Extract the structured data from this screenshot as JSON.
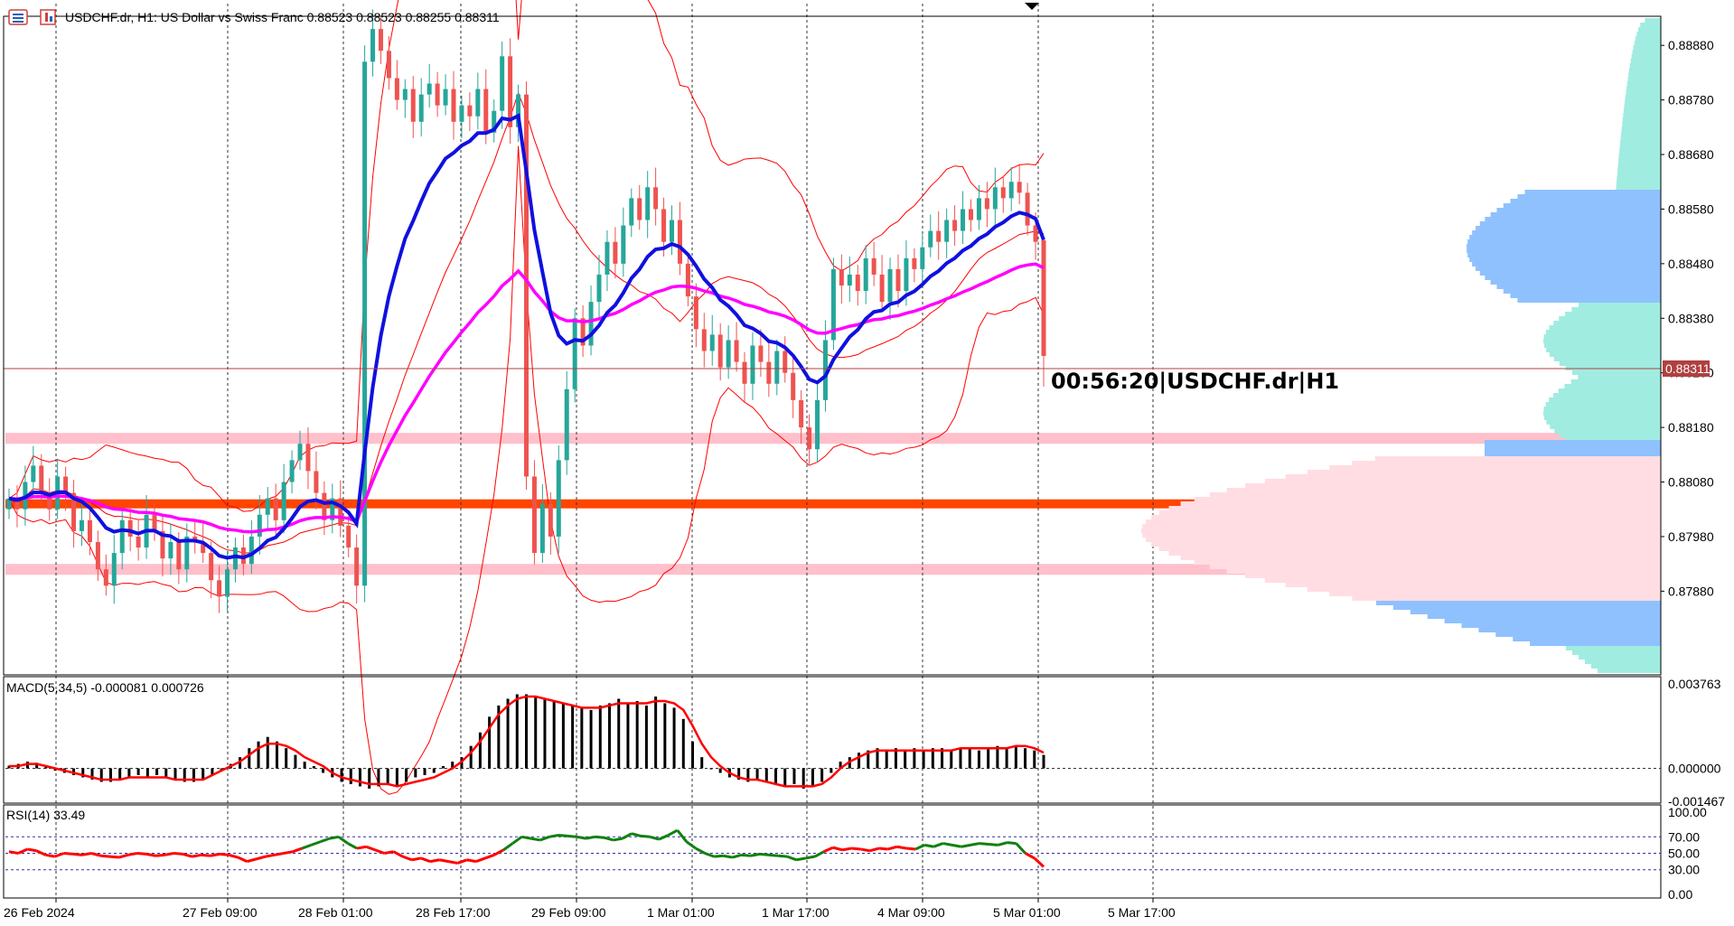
{
  "header": {
    "title": "USDCHF.dr, H1:  US Dollar vs Swiss Franc  0.88523 0.88523 0.88255 0.88311",
    "menu_icon": "chart-menu-icon",
    "window_icon": "chart-window-icon"
  },
  "current_price_label": "0.88311",
  "countdown_label": "00:56:20|USDCHF.dr|H1",
  "colors": {
    "bull": "#26a69a",
    "bear": "#ef5350",
    "ema_fast": "#1010e0",
    "ema_slow": "#ff00ff",
    "bollinger": "#ff0000",
    "key_level": "#ff4500",
    "zone": "#ffc0cb",
    "vp_blue": "#8fc1ff",
    "vp_cyan": "#a0ece0",
    "vp_pink": "#ffdde3",
    "grid": "#000000"
  },
  "chart_data": [
    {
      "type": "candlestick",
      "title": "USDCHF.dr, H1:  US Dollar vs Swiss Franc",
      "x_tick_labels": [
        "26 Feb 2024",
        "27 Feb 09:00",
        "28 Feb 01:00",
        "28 Feb 17:00",
        "29 Feb 09:00",
        "1 Mar 01:00",
        "1 Mar 17:00",
        "4 Mar 09:00",
        "5 Mar 01:00",
        "5 Mar 17:00"
      ],
      "y_tick_labels": [
        "0.88880",
        "0.88780",
        "0.88680",
        "0.88580",
        "0.88480",
        "0.88380",
        "0.88280",
        "0.88180",
        "0.88080",
        "0.87980",
        "0.87880"
      ],
      "ylim": [
        0.8773,
        0.8893
      ],
      "ohlc_last": {
        "open": 0.88523,
        "high": 0.88523,
        "low": 0.88255,
        "close": 0.88311
      },
      "closes": [
        0.8805,
        0.8803,
        0.8808,
        0.8811,
        0.8806,
        0.8803,
        0.8809,
        0.8806,
        0.8799,
        0.8801,
        0.8797,
        0.8792,
        0.8789,
        0.8795,
        0.8801,
        0.8798,
        0.8796,
        0.8802,
        0.8799,
        0.8794,
        0.8797,
        0.8792,
        0.8798,
        0.8797,
        0.8795,
        0.879,
        0.8787,
        0.8792,
        0.8796,
        0.8793,
        0.8798,
        0.8802,
        0.8805,
        0.8801,
        0.8808,
        0.8812,
        0.8815,
        0.881,
        0.8806,
        0.8801,
        0.8805,
        0.88,
        0.8796,
        0.8789,
        0.8885,
        0.8891,
        0.8887,
        0.8882,
        0.8878,
        0.888,
        0.8874,
        0.8879,
        0.8881,
        0.8877,
        0.888,
        0.8874,
        0.8877,
        0.8875,
        0.888,
        0.8872,
        0.8876,
        0.8886,
        0.8873,
        0.8879,
        0.8809,
        0.8795,
        0.8804,
        0.8798,
        0.8812,
        0.8825,
        0.8838,
        0.8833,
        0.8841,
        0.8846,
        0.8852,
        0.8848,
        0.8855,
        0.886,
        0.8856,
        0.8862,
        0.8858,
        0.8852,
        0.8856,
        0.8848,
        0.8842,
        0.8836,
        0.8832,
        0.8835,
        0.8829,
        0.8834,
        0.883,
        0.8826,
        0.8833,
        0.883,
        0.8826,
        0.8832,
        0.8828,
        0.8823,
        0.8818,
        0.8814,
        0.8823,
        0.8834,
        0.8847,
        0.8844,
        0.8846,
        0.8843,
        0.8849,
        0.8846,
        0.8841,
        0.8847,
        0.8843,
        0.8849,
        0.8847,
        0.8851,
        0.8854,
        0.8852,
        0.8856,
        0.8854,
        0.8858,
        0.8856,
        0.886,
        0.8858,
        0.8862,
        0.886,
        0.8863,
        0.8861,
        0.8855,
        0.8852,
        0.8831
      ],
      "key_level": 0.8804,
      "zone_upper": [
        0.8815,
        0.8817
      ],
      "zone_lower": [
        0.8791,
        0.8793
      ],
      "series": [
        {
          "name": "",
          "indicator": "EMA",
          "color": "#1010e0"
        },
        {
          "name": "",
          "indicator": "SMA",
          "color": "#ff00ff"
        },
        {
          "name": "",
          "indicator": "Bollinger Bands",
          "color": "#ff0000"
        }
      ]
    },
    {
      "type": "bar",
      "title": "MACD(5,34,5) -0.000081 0.000726",
      "y_tick_labels": [
        "0.003763",
        "0.000000",
        "-0.001467"
      ],
      "ylim": [
        -0.001467,
        0.003763
      ],
      "values": [
        0.00012,
        0.0002,
        0.0003,
        0.00025,
        0.0001,
        -0.0001,
        -0.0002,
        -0.0003,
        -0.0004,
        -0.0005,
        -0.0006,
        -0.0006,
        -0.0005,
        -0.0004,
        -0.0003,
        -0.0004,
        -0.0003,
        -0.0004,
        -0.0005,
        -0.0006,
        -0.0006,
        -0.0005,
        -0.0003,
        -0.0001,
        0.0002,
        0.0005,
        0.0009,
        0.0012,
        0.0014,
        0.0012,
        0.0009,
        0.0006,
        0.0003,
        0.0001,
        -0.0002,
        -0.0004,
        -0.0006,
        -0.0007,
        -0.0008,
        -0.0009,
        -0.0008,
        -0.0007,
        -0.0008,
        -0.0006,
        -0.0004,
        -0.0003,
        -0.0002,
        0.0001,
        0.0003,
        0.0005,
        0.001,
        0.0016,
        0.0023,
        0.0028,
        0.0031,
        0.0033,
        0.0033,
        0.0032,
        0.0031,
        0.003,
        0.0029,
        0.0028,
        0.0027,
        0.0026,
        0.0028,
        0.0029,
        0.0031,
        0.0029,
        0.003,
        0.0028,
        0.0032,
        0.0029,
        0.0027,
        0.0022,
        0.0012,
        0.0005,
        0.0,
        -0.0002,
        -0.0004,
        -0.0005,
        -0.0006,
        -0.0005,
        -0.0006,
        -0.0007,
        -0.0008,
        -0.0007,
        -0.0009,
        -0.0008,
        -0.0006,
        -0.0002,
        0.0003,
        0.0005,
        0.0007,
        0.0008,
        0.0009,
        0.0008,
        0.0009,
        0.0008,
        0.0009,
        0.0008,
        0.0009,
        0.0009,
        0.0008,
        0.0009,
        0.0009,
        0.0008,
        0.0009,
        0.001,
        0.0009,
        0.001,
        0.0009,
        0.0008,
        0.0006
      ],
      "signal": [
        0.0001,
        0.0001,
        0.0002,
        0.0002,
        0.0001,
        0.0,
        -0.0001,
        -0.0002,
        -0.0003,
        -0.0004,
        -0.0005,
        -0.0005,
        -0.0005,
        -0.0004,
        -0.0004,
        -0.0004,
        -0.0004,
        -0.0004,
        -0.0005,
        -0.0005,
        -0.0005,
        -0.0005,
        -0.0003,
        -0.0001,
        0.0001,
        0.0003,
        0.0006,
        0.0009,
        0.0011,
        0.0011,
        0.001,
        0.0008,
        0.0005,
        0.0003,
        0.0001,
        -0.0002,
        -0.0004,
        -0.0005,
        -0.0006,
        -0.0007,
        -0.0007,
        -0.0007,
        -0.0008,
        -0.0007,
        -0.0006,
        -0.0005,
        -0.0004,
        -0.0002,
        0.0,
        0.0003,
        0.0007,
        0.0012,
        0.0018,
        0.0024,
        0.0028,
        0.0031,
        0.0032,
        0.0032,
        0.0031,
        0.003,
        0.0029,
        0.0028,
        0.0027,
        0.0027,
        0.0027,
        0.0028,
        0.0029,
        0.0029,
        0.0029,
        0.0029,
        0.003,
        0.003,
        0.0029,
        0.0026,
        0.0019,
        0.0011,
        0.0005,
        0.0001,
        -0.0002,
        -0.0004,
        -0.0005,
        -0.0005,
        -0.0006,
        -0.0007,
        -0.0008,
        -0.0008,
        -0.0008,
        -0.0008,
        -0.0007,
        -0.0004,
        0.0,
        0.0003,
        0.0005,
        0.0007,
        0.0008,
        0.0008,
        0.0008,
        0.0008,
        0.0008,
        0.0008,
        0.0008,
        0.0008,
        0.0008,
        0.0009,
        0.0009,
        0.0009,
        0.0009,
        0.0009,
        0.0009,
        0.001,
        0.001,
        0.0009,
        0.0007
      ]
    },
    {
      "type": "line",
      "title": "RSI(14) 33.49",
      "y_tick_labels": [
        "100.00",
        "70.00",
        "50.00",
        "30.00",
        "0.00"
      ],
      "ylim": [
        0,
        100
      ],
      "levels": [
        70,
        50,
        30
      ],
      "values": [
        52,
        50,
        55,
        53,
        48,
        46,
        50,
        49,
        48,
        50,
        47,
        46,
        45,
        48,
        50,
        49,
        47,
        48,
        50,
        49,
        46,
        48,
        47,
        49,
        48,
        45,
        40,
        43,
        46,
        48,
        50,
        52,
        56,
        60,
        64,
        68,
        70,
        62,
        56,
        58,
        54,
        50,
        52,
        46,
        42,
        44,
        40,
        42,
        40,
        38,
        42,
        40,
        44,
        48,
        54,
        62,
        70,
        68,
        66,
        70,
        72,
        71,
        70,
        68,
        70,
        69,
        66,
        68,
        74,
        71,
        70,
        67,
        72,
        78,
        64,
        56,
        50,
        46,
        47,
        45,
        48,
        47,
        49,
        48,
        47,
        46,
        42,
        44,
        46,
        52,
        57,
        54,
        56,
        55,
        53,
        56,
        55,
        58,
        56,
        55,
        60,
        58,
        62,
        60,
        58,
        60,
        62,
        61,
        60,
        63,
        62,
        50,
        44,
        33.49
      ]
    }
  ]
}
